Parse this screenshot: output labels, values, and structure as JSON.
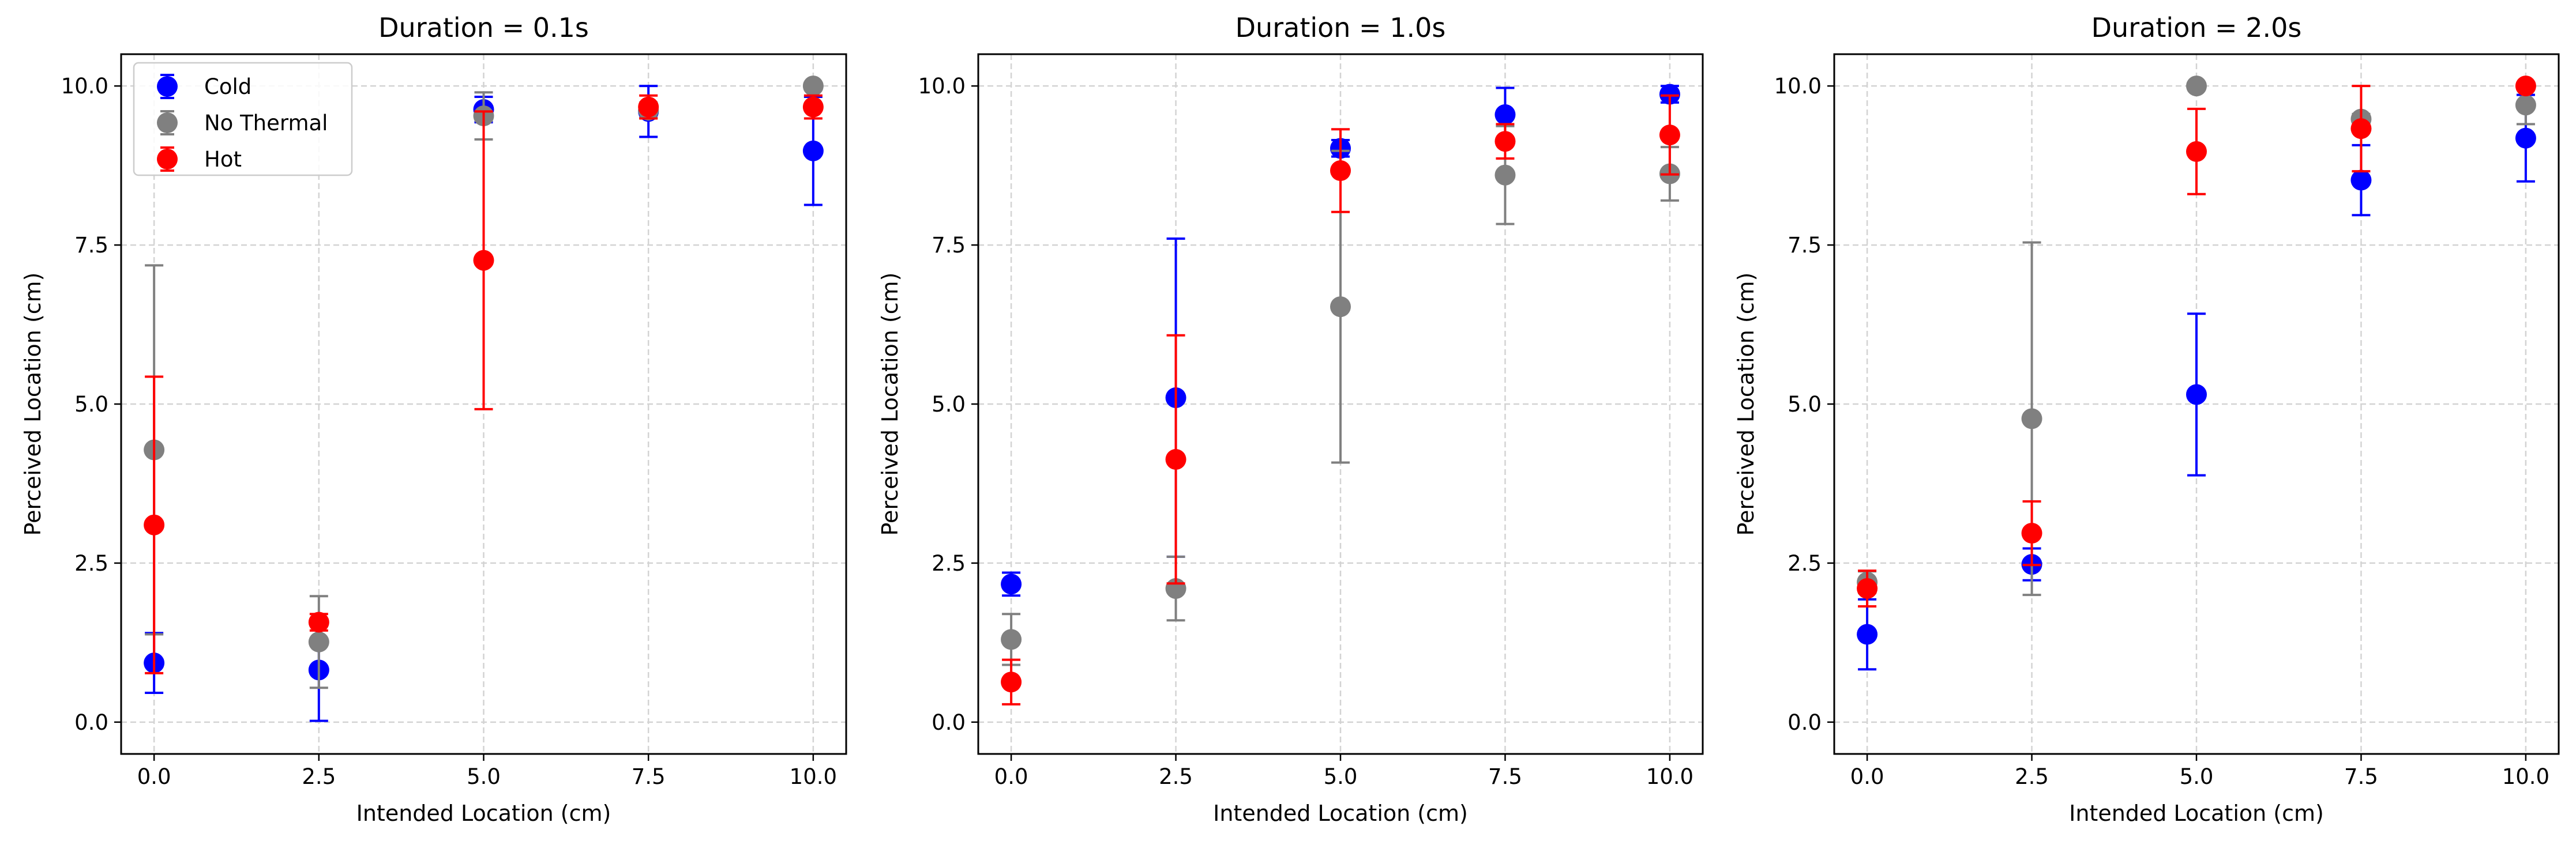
{
  "chart_data": [
    {
      "type": "scatter",
      "title": "Duration = 0.1s",
      "xlabel": "Intended Location (cm)",
      "ylabel": "Perceived Location (cm)",
      "xlim": [
        -0.5,
        10.5
      ],
      "ylim": [
        -0.5,
        10.5
      ],
      "xticks": [
        "0.0",
        "2.5",
        "5.0",
        "7.5",
        "10.0"
      ],
      "yticks": [
        "0.0",
        "2.5",
        "5.0",
        "7.5",
        "10.0"
      ],
      "grid": true,
      "legend": {
        "placement": "upper-left",
        "entries": [
          "Cold",
          "No Thermal",
          "Hot"
        ]
      },
      "series": [
        {
          "name": "Cold",
          "color": "#0000ff",
          "x": [
            0,
            2.5,
            5,
            7.5,
            10
          ],
          "y": [
            0.93,
            0.82,
            9.63,
            9.6,
            8.98
          ],
          "err_low": [
            0.47,
            0.8,
            0.2,
            0.4,
            0.85
          ],
          "err_high": [
            0.47,
            0.8,
            0.2,
            0.4,
            0.85
          ]
        },
        {
          "name": "No Thermal",
          "color": "#808080",
          "x": [
            0,
            2.5,
            5,
            7.5,
            10
          ],
          "y": [
            4.28,
            1.26,
            9.53,
            9.62,
            10.0
          ],
          "err_low": [
            2.9,
            0.72,
            0.37,
            0.12,
            0.0
          ],
          "err_high": [
            2.9,
            0.72,
            0.37,
            0.12,
            0.0
          ]
        },
        {
          "name": "Hot",
          "color": "#ff0000",
          "x": [
            0,
            2.5,
            5,
            7.5,
            10
          ],
          "y": [
            3.1,
            1.57,
            7.26,
            9.67,
            9.67
          ],
          "err_low": [
            2.33,
            0.13,
            2.34,
            0.18,
            0.18
          ],
          "err_high": [
            2.33,
            0.13,
            2.34,
            0.18,
            0.18
          ]
        }
      ]
    },
    {
      "type": "scatter",
      "title": "Duration = 1.0s",
      "xlabel": "Intended Location (cm)",
      "ylabel": "Perceived Location (cm)",
      "xlim": [
        -0.5,
        10.5
      ],
      "ylim": [
        -0.5,
        10.5
      ],
      "xticks": [
        "0.0",
        "2.5",
        "5.0",
        "7.5",
        "10.0"
      ],
      "yticks": [
        "0.0",
        "2.5",
        "5.0",
        "7.5",
        "10.0"
      ],
      "grid": true,
      "series": [
        {
          "name": "Cold",
          "color": "#0000ff",
          "x": [
            0,
            2.5,
            5,
            7.5,
            10
          ],
          "y": [
            2.17,
            5.1,
            9.02,
            9.55,
            9.87
          ],
          "err_low": [
            0.18,
            2.5,
            0.13,
            0.42,
            0.13
          ],
          "err_high": [
            0.18,
            2.5,
            0.13,
            0.42,
            0.13
          ]
        },
        {
          "name": "No Thermal",
          "color": "#808080",
          "x": [
            0,
            2.5,
            5,
            7.5,
            10
          ],
          "y": [
            1.3,
            2.1,
            6.53,
            8.6,
            8.62
          ],
          "err_low": [
            0.4,
            0.5,
            2.45,
            0.77,
            0.42
          ],
          "err_high": [
            0.4,
            0.5,
            2.45,
            0.77,
            0.42
          ]
        },
        {
          "name": "Hot",
          "color": "#ff0000",
          "x": [
            0,
            2.5,
            5,
            7.5,
            10
          ],
          "y": [
            0.63,
            4.13,
            8.67,
            9.13,
            9.23
          ],
          "err_low": [
            0.35,
            1.95,
            0.65,
            0.27,
            0.62
          ],
          "err_high": [
            0.35,
            1.95,
            0.65,
            0.27,
            0.62
          ]
        }
      ]
    },
    {
      "type": "scatter",
      "title": "Duration = 2.0s",
      "xlabel": "Intended Location (cm)",
      "ylabel": "Perceived Location (cm)",
      "xlim": [
        -0.5,
        10.5
      ],
      "ylim": [
        -0.5,
        10.5
      ],
      "xticks": [
        "0.0",
        "2.5",
        "5.0",
        "7.5",
        "10.0"
      ],
      "yticks": [
        "0.0",
        "2.5",
        "5.0",
        "7.5",
        "10.0"
      ],
      "grid": true,
      "series": [
        {
          "name": "Cold",
          "color": "#0000ff",
          "x": [
            0,
            2.5,
            5,
            7.5,
            10
          ],
          "y": [
            1.38,
            2.48,
            5.15,
            8.52,
            9.18
          ],
          "err_low": [
            0.55,
            0.25,
            1.27,
            0.55,
            0.68
          ],
          "err_high": [
            0.55,
            0.25,
            1.27,
            0.55,
            0.68
          ]
        },
        {
          "name": "No Thermal",
          "color": "#808080",
          "x": [
            0,
            2.5,
            5,
            7.5,
            10
          ],
          "y": [
            2.2,
            4.77,
            10.0,
            9.48,
            9.7
          ],
          "err_low": [
            0.17,
            2.77,
            0.0,
            0.08,
            0.3
          ],
          "err_high": [
            0.17,
            2.77,
            0.0,
            0.08,
            0.3
          ]
        },
        {
          "name": "Hot",
          "color": "#ff0000",
          "x": [
            0,
            2.5,
            5,
            7.5,
            10
          ],
          "y": [
            2.1,
            2.97,
            8.97,
            9.33,
            10.0
          ],
          "err_low": [
            0.28,
            0.5,
            0.67,
            0.67,
            0.0
          ],
          "err_high": [
            0.28,
            0.5,
            0.67,
            0.67,
            0.0
          ]
        }
      ]
    }
  ]
}
